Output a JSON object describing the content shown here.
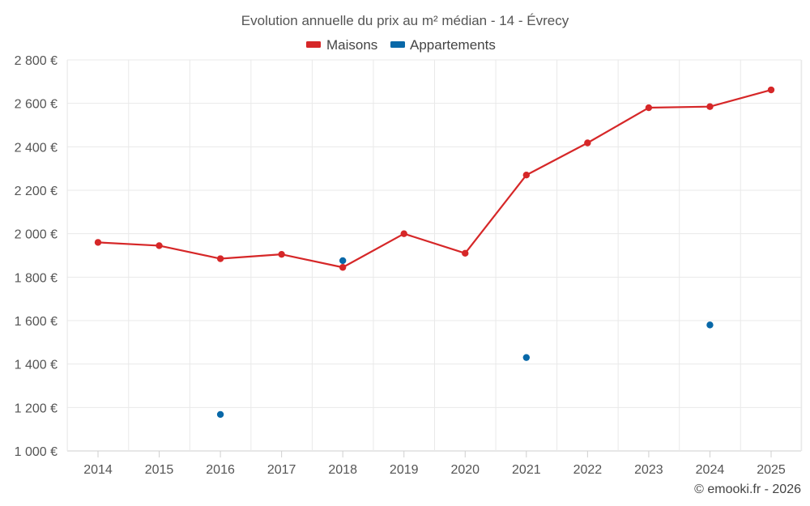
{
  "chart_data": {
    "type": "line",
    "title": "Evolution annuelle du prix au m² médian - 14 - Évrecy",
    "categories": [
      "2014",
      "2015",
      "2016",
      "2017",
      "2018",
      "2019",
      "2020",
      "2021",
      "2022",
      "2023",
      "2024",
      "2025"
    ],
    "series": [
      {
        "name": "Maisons",
        "color": "#d62728",
        "line": true,
        "values": [
          1960,
          1945,
          1885,
          1905,
          1845,
          2000,
          1910,
          2270,
          2418,
          2580,
          2585,
          2662
        ]
      },
      {
        "name": "Appartements",
        "color": "#0868a8",
        "line": false,
        "values": [
          null,
          null,
          1168,
          null,
          1876,
          null,
          null,
          1430,
          null,
          null,
          1580,
          null
        ]
      }
    ],
    "ylim": [
      1000,
      2800
    ],
    "yticks": [
      1000,
      1200,
      1400,
      1600,
      1800,
      2000,
      2200,
      2400,
      2600,
      2800
    ],
    "ytick_labels": [
      "1 000 €",
      "1 200 €",
      "1 400 €",
      "1 600 €",
      "1 800 €",
      "2 000 €",
      "2 200 €",
      "2 400 €",
      "2 600 €",
      "2 800 €"
    ],
    "xlabel": "",
    "ylabel": "",
    "grid": true,
    "legend_position": "top-center"
  },
  "credit": "© emooki.fr - 2026"
}
